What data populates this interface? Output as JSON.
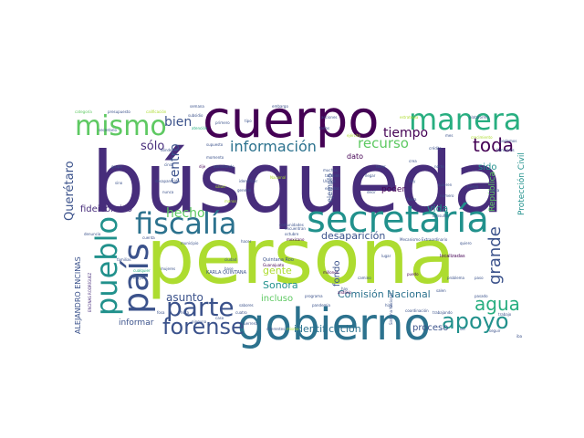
{
  "palette": {
    "dark_purple": "#440154",
    "indigo": "#472d7b",
    "slate": "#3b528b",
    "steel": "#2c728e",
    "teal": "#21918c",
    "sea": "#28ae80",
    "green": "#5ec962",
    "lime": "#addc30",
    "yellow": "#fde725"
  },
  "words": {
    "busqueda": "búsqueda",
    "persona": "persona",
    "cuerpo": "cuerpo",
    "gobierno": "gobierno",
    "secretaria": "secretaría",
    "fiscalia": "fiscalía",
    "manera": "manera",
    "mismo": "mismo",
    "pais": "país",
    "pueblo": "pueblo",
    "parte": "parte",
    "forense": "forense",
    "apoyo": "apoyo",
    "agua": "agua",
    "grande": "grande",
    "informacion": "información",
    "recurso": "recurso",
    "toda": "toda",
    "tiempo": "tiempo",
    "bien": "bien",
    "solo": "sólo",
    "centro": "centro",
    "hecho": "hecho",
    "queretaro": "Querétaro",
    "fideicomiso": "fideicomiso",
    "asunto": "asunto",
    "desaparicion": "desaparición",
    "vida": "vida",
    "sido": "sido",
    "comision_nacional": "Comisión Nacional",
    "identificacion": "identificación",
    "proceso": "proceso",
    "gente": "gente",
    "sonora": "Sonora",
    "fondo": "fondo",
    "incluso": "incluso",
    "informar": "informar",
    "alejandro": "ALEJANDRO ENCINAS",
    "proteccion_civil": "Protección Civil",
    "republica": "República",
    "poder": "poder",
    "ejemplo": "ejemplo",
    "dato": "dato",
    "karla": "KARLA QUINTANA",
    "quintana_roo": "Quintana Roo",
    "localizadas": "localizadas",
    "mecanismo": "Mecanismo Extraordinario",
    "guanajuato": "Guanajuato",
    "encinas_rodriguez": "ENCINAS RODRÍGUEZ",
    "encuentran": "encuentran",
    "municipio": "municipio",
    "cualquier": "cualquier",
    "millones": "millones",
    "comunidades": "comunidades",
    "pandemia": "pandemia",
    "atencion": "atención",
    "desaparecido": "desaparecido",
    "secretario": "secretario",
    "supuesto": "supuesto",
    "presupuesto": "presupuesto",
    "calificacion": "calificación",
    "semana": "semana",
    "subsidio": "subsidio",
    "categoria": "categoría",
    "quiero": "quiero",
    "norte": "norte",
    "mexicano": "mexicano",
    "diferentes": "diferentes",
    "coordinacion": "coordinación",
    "consulta": "consulta",
    "quieren": "quieren",
    "estados": "estados",
    "crecimiento": "crecimiento",
    "salen": "salen",
    "trabajando": "trabajando",
    "problema": "problema",
    "seguir": "seguir",
    "puedo": "puedo",
    "paso": "paso",
    "cosa": "cosa",
    "grupo": "grupo",
    "sino": "sino",
    "nunca": "nunca",
    "podemos": "podemos",
    "familias": "familias",
    "familiares": "familiares",
    "trabajo": "trabajo",
    "mayor": "mayor",
    "hora": "hora",
    "cuatro": "cuatro",
    "programa": "programa",
    "unidos": "Unidos",
    "primero": "primero",
    "tipo": "tipo",
    "nacional": "Nacional",
    "ninguna": "ninguna",
    "analisis": "análisis",
    "sistema_nacional": "Sistema Nacional",
    "cinco": "cinco",
    "dije": "dije",
    "donde": "dónde",
    "crea": "crea",
    "hizo": "hizo",
    "salud": "salud",
    "guerrero": "Guerrero",
    "octubre": "octubre",
    "numero": "número",
    "fosa": "fosa",
    "cuenta": "cuenta",
    "hacer": "hacer",
    "misma": "misma",
    "manos": "manos",
    "general": "general",
    "camino": "camino",
    "lugar": "lugar",
    "base": "base",
    "iba": "iba",
    "ser": "ser",
    "mes": "mes",
    "denuncia": "denuncia",
    "sabores": "sabores",
    "identificar": "identificar",
    "atendiendo": "atendiendo",
    "muchas": "muchas",
    "credito": "crédito",
    "tambien": "también",
    "hoy": "hoy",
    "fuera": "fuera",
    "nuevo": "nuevo",
    "pasado": "pasado",
    "ejercito": "ejército",
    "acciones": "acciones",
    "estrategia": "estrategia",
    "plataforma": "plataforma",
    "embargo": "embargo",
    "todas": "todas",
    "momento": "momento",
    "tener": "tener",
    "llegar": "llegar",
    "ciudad": "ciudad",
    "mujeres": "mujeres",
    "decir": "decir",
    "hay": "hay",
    "caso": "caso"
  }
}
